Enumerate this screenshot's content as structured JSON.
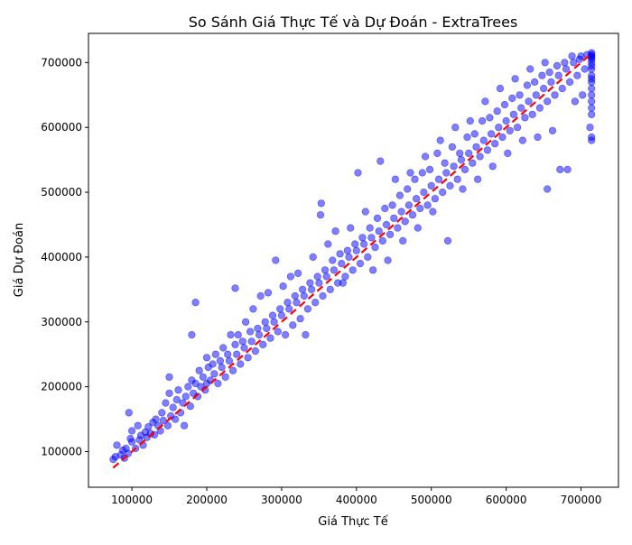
{
  "chart_data": {
    "type": "scatter",
    "title": "So Sánh Giá Thực Tế và Dự Đoán - ExtraTrees",
    "xlabel": "Giá Thực Tế",
    "ylabel": "Giá Dự Đoán",
    "xlim": [
      42000,
      750000
    ],
    "ylim": [
      45000,
      745000
    ],
    "xticks": [
      100000,
      200000,
      300000,
      400000,
      500000,
      600000,
      700000
    ],
    "yticks": [
      100000,
      200000,
      300000,
      400000,
      500000,
      600000,
      700000
    ],
    "grid": false,
    "point_color": "#0000ff",
    "point_alpha": 0.5,
    "reference_line": {
      "from": [
        75000,
        75000
      ],
      "to": [
        715000,
        715000
      ],
      "color": "#ff0000",
      "style": "dashed"
    },
    "points": [
      [
        75000,
        88000
      ],
      [
        78000,
        92000
      ],
      [
        80000,
        110000
      ],
      [
        85000,
        95000
      ],
      [
        88000,
        102000
      ],
      [
        90000,
        90000
      ],
      [
        92000,
        105000
      ],
      [
        95000,
        97000
      ],
      [
        96000,
        160000
      ],
      [
        98000,
        120000
      ],
      [
        100000,
        115000
      ],
      [
        100000,
        132000
      ],
      [
        105000,
        105000
      ],
      [
        108000,
        140000
      ],
      [
        110000,
        118000
      ],
      [
        112000,
        125000
      ],
      [
        115000,
        110000
      ],
      [
        118000,
        130000
      ],
      [
        120000,
        122000
      ],
      [
        122000,
        138000
      ],
      [
        125000,
        128000
      ],
      [
        128000,
        145000
      ],
      [
        130000,
        126000
      ],
      [
        132000,
        150000
      ],
      [
        135000,
        140000
      ],
      [
        138000,
        132000
      ],
      [
        140000,
        160000
      ],
      [
        142000,
        148000
      ],
      [
        145000,
        175000
      ],
      [
        148000,
        140000
      ],
      [
        150000,
        190000
      ],
      [
        150000,
        215000
      ],
      [
        152000,
        155000
      ],
      [
        155000,
        168000
      ],
      [
        158000,
        150000
      ],
      [
        160000,
        180000
      ],
      [
        162000,
        195000
      ],
      [
        165000,
        160000
      ],
      [
        168000,
        175000
      ],
      [
        170000,
        140000
      ],
      [
        172000,
        185000
      ],
      [
        175000,
        200000
      ],
      [
        178000,
        170000
      ],
      [
        180000,
        210000
      ],
      [
        180000,
        280000
      ],
      [
        182000,
        190000
      ],
      [
        185000,
        330000
      ],
      [
        185000,
        205000
      ],
      [
        188000,
        185000
      ],
      [
        190000,
        225000
      ],
      [
        192000,
        200000
      ],
      [
        195000,
        215000
      ],
      [
        198000,
        195000
      ],
      [
        200000,
        245000
      ],
      [
        200000,
        205000
      ],
      [
        202000,
        230000
      ],
      [
        205000,
        210000
      ],
      [
        208000,
        235000
      ],
      [
        210000,
        220000
      ],
      [
        212000,
        250000
      ],
      [
        215000,
        205000
      ],
      [
        218000,
        240000
      ],
      [
        220000,
        230000
      ],
      [
        222000,
        260000
      ],
      [
        225000,
        215000
      ],
      [
        228000,
        250000
      ],
      [
        230000,
        240000
      ],
      [
        232000,
        280000
      ],
      [
        235000,
        225000
      ],
      [
        238000,
        265000
      ],
      [
        238000,
        352000
      ],
      [
        240000,
        250000
      ],
      [
        242000,
        280000
      ],
      [
        245000,
        235000
      ],
      [
        248000,
        270000
      ],
      [
        250000,
        260000
      ],
      [
        252000,
        300000
      ],
      [
        255000,
        245000
      ],
      [
        258000,
        285000
      ],
      [
        260000,
        270000
      ],
      [
        262000,
        320000
      ],
      [
        265000,
        255000
      ],
      [
        268000,
        290000
      ],
      [
        270000,
        280000
      ],
      [
        272000,
        340000
      ],
      [
        275000,
        265000
      ],
      [
        278000,
        300000
      ],
      [
        280000,
        290000
      ],
      [
        282000,
        345000
      ],
      [
        285000,
        275000
      ],
      [
        288000,
        310000
      ],
      [
        290000,
        300000
      ],
      [
        292000,
        395000
      ],
      [
        295000,
        285000
      ],
      [
        298000,
        320000
      ],
      [
        300000,
        310000
      ],
      [
        302000,
        355000
      ],
      [
        305000,
        280000
      ],
      [
        308000,
        330000
      ],
      [
        310000,
        320000
      ],
      [
        312000,
        370000
      ],
      [
        315000,
        295000
      ],
      [
        318000,
        340000
      ],
      [
        320000,
        330000
      ],
      [
        322000,
        375000
      ],
      [
        325000,
        305000
      ],
      [
        328000,
        350000
      ],
      [
        330000,
        340000
      ],
      [
        332000,
        280000
      ],
      [
        335000,
        320000
      ],
      [
        338000,
        360000
      ],
      [
        340000,
        350000
      ],
      [
        342000,
        400000
      ],
      [
        345000,
        330000
      ],
      [
        348000,
        370000
      ],
      [
        350000,
        360000
      ],
      [
        352000,
        465000
      ],
      [
        353000,
        483000
      ],
      [
        355000,
        340000
      ],
      [
        358000,
        380000
      ],
      [
        360000,
        370000
      ],
      [
        362000,
        420000
      ],
      [
        365000,
        350000
      ],
      [
        368000,
        395000
      ],
      [
        370000,
        380000
      ],
      [
        372000,
        440000
      ],
      [
        375000,
        360000
      ],
      [
        378000,
        405000
      ],
      [
        380000,
        390000
      ],
      [
        382000,
        360000
      ],
      [
        385000,
        370000
      ],
      [
        388000,
        410000
      ],
      [
        390000,
        400000
      ],
      [
        392000,
        445000
      ],
      [
        395000,
        380000
      ],
      [
        398000,
        420000
      ],
      [
        400000,
        410000
      ],
      [
        402000,
        530000
      ],
      [
        405000,
        390000
      ],
      [
        408000,
        430000
      ],
      [
        410000,
        420000
      ],
      [
        412000,
        470000
      ],
      [
        415000,
        400000
      ],
      [
        418000,
        445000
      ],
      [
        420000,
        430000
      ],
      [
        422000,
        380000
      ],
      [
        425000,
        415000
      ],
      [
        428000,
        460000
      ],
      [
        430000,
        440000
      ],
      [
        432000,
        548000
      ],
      [
        435000,
        425000
      ],
      [
        438000,
        475000
      ],
      [
        440000,
        450000
      ],
      [
        442000,
        395000
      ],
      [
        445000,
        435000
      ],
      [
        448000,
        480000
      ],
      [
        450000,
        460000
      ],
      [
        452000,
        520000
      ],
      [
        455000,
        445000
      ],
      [
        458000,
        495000
      ],
      [
        460000,
        470000
      ],
      [
        462000,
        425000
      ],
      [
        465000,
        455000
      ],
      [
        468000,
        505000
      ],
      [
        470000,
        480000
      ],
      [
        472000,
        530000
      ],
      [
        475000,
        465000
      ],
      [
        478000,
        520000
      ],
      [
        480000,
        490000
      ],
      [
        482000,
        445000
      ],
      [
        485000,
        475000
      ],
      [
        488000,
        530000
      ],
      [
        490000,
        500000
      ],
      [
        492000,
        555000
      ],
      [
        495000,
        480000
      ],
      [
        498000,
        535000
      ],
      [
        500000,
        510000
      ],
      [
        502000,
        470000
      ],
      [
        505000,
        490000
      ],
      [
        508000,
        560000
      ],
      [
        510000,
        520000
      ],
      [
        512000,
        580000
      ],
      [
        515000,
        500000
      ],
      [
        518000,
        545000
      ],
      [
        520000,
        530000
      ],
      [
        522000,
        425000
      ],
      [
        525000,
        510000
      ],
      [
        528000,
        570000
      ],
      [
        530000,
        540000
      ],
      [
        532000,
        600000
      ],
      [
        535000,
        520000
      ],
      [
        538000,
        560000
      ],
      [
        540000,
        550000
      ],
      [
        542000,
        505000
      ],
      [
        545000,
        535000
      ],
      [
        548000,
        585000
      ],
      [
        550000,
        560000
      ],
      [
        552000,
        610000
      ],
      [
        555000,
        545000
      ],
      [
        558000,
        590000
      ],
      [
        560000,
        570000
      ],
      [
        562000,
        520000
      ],
      [
        565000,
        555000
      ],
      [
        568000,
        610000
      ],
      [
        570000,
        580000
      ],
      [
        572000,
        640000
      ],
      [
        575000,
        565000
      ],
      [
        578000,
        615000
      ],
      [
        580000,
        590000
      ],
      [
        582000,
        540000
      ],
      [
        585000,
        575000
      ],
      [
        588000,
        625000
      ],
      [
        590000,
        600000
      ],
      [
        592000,
        660000
      ],
      [
        595000,
        585000
      ],
      [
        598000,
        635000
      ],
      [
        600000,
        610000
      ],
      [
        602000,
        560000
      ],
      [
        605000,
        595000
      ],
      [
        608000,
        645000
      ],
      [
        610000,
        620000
      ],
      [
        612000,
        675000
      ],
      [
        615000,
        600000
      ],
      [
        618000,
        650000
      ],
      [
        620000,
        630000
      ],
      [
        622000,
        580000
      ],
      [
        625000,
        615000
      ],
      [
        628000,
        665000
      ],
      [
        630000,
        640000
      ],
      [
        632000,
        690000
      ],
      [
        635000,
        620000
      ],
      [
        638000,
        670000
      ],
      [
        640000,
        650000
      ],
      [
        642000,
        585000
      ],
      [
        645000,
        630000
      ],
      [
        648000,
        680000
      ],
      [
        650000,
        660000
      ],
      [
        652000,
        700000
      ],
      [
        655000,
        640000
      ],
      [
        655000,
        505000
      ],
      [
        658000,
        685000
      ],
      [
        660000,
        670000
      ],
      [
        662000,
        595000
      ],
      [
        665000,
        650000
      ],
      [
        668000,
        695000
      ],
      [
        670000,
        680000
      ],
      [
        672000,
        535000
      ],
      [
        675000,
        660000
      ],
      [
        678000,
        700000
      ],
      [
        680000,
        690000
      ],
      [
        682000,
        535000
      ],
      [
        685000,
        670000
      ],
      [
        688000,
        710000
      ],
      [
        690000,
        700000
      ],
      [
        692000,
        640000
      ],
      [
        695000,
        680000
      ],
      [
        698000,
        705000
      ],
      [
        700000,
        710000
      ],
      [
        702000,
        650000
      ],
      [
        705000,
        690000
      ],
      [
        708000,
        712000
      ],
      [
        712000,
        600000
      ],
      [
        714000,
        580000
      ],
      [
        714000,
        585000
      ],
      [
        714000,
        620000
      ],
      [
        714000,
        630000
      ],
      [
        714000,
        640000
      ],
      [
        714000,
        650000
      ],
      [
        714000,
        660000
      ],
      [
        714000,
        670000
      ],
      [
        714000,
        675000
      ],
      [
        714000,
        680000
      ],
      [
        714000,
        690000
      ],
      [
        714000,
        695000
      ],
      [
        714000,
        700000
      ],
      [
        714000,
        705000
      ],
      [
        714000,
        708000
      ],
      [
        714000,
        710000
      ],
      [
        714000,
        712000
      ],
      [
        714000,
        715000
      ]
    ]
  }
}
